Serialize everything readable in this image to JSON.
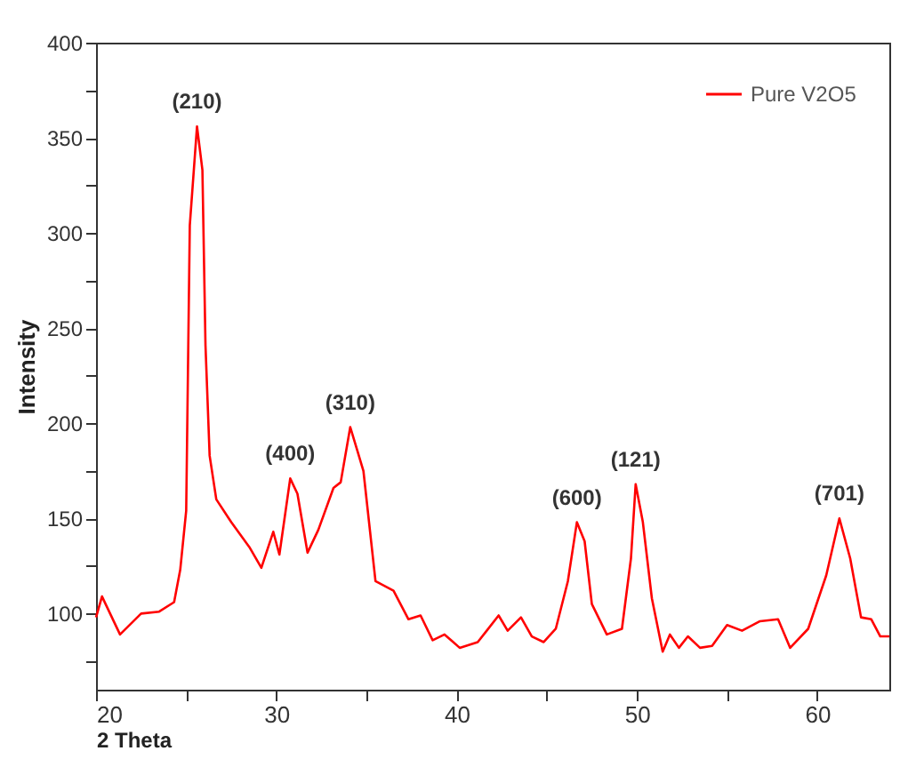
{
  "chart_data": {
    "type": "line",
    "xlabel": "2 Theta",
    "ylabel": "Intensity",
    "xlim": [
      20,
      64
    ],
    "ylim": [
      60,
      400
    ],
    "xticks": [
      20,
      {
        "value": 25,
        "label": null
      },
      30,
      {
        "value": 35,
        "label": null
      },
      40,
      {
        "value": 45,
        "label": null
      },
      50,
      {
        "value": 55,
        "label": null
      },
      60
    ],
    "yticks": [
      {
        "value": 75,
        "label": null
      },
      100,
      {
        "value": 125,
        "label": null
      },
      150,
      {
        "value": 175,
        "label": null
      },
      200,
      {
        "value": 225,
        "label": null
      },
      250,
      {
        "value": 275,
        "label": null
      },
      300,
      {
        "value": 325,
        "label": null
      },
      350,
      {
        "value": 375,
        "label": null
      },
      400
    ],
    "grid": false,
    "legend": "top right",
    "marker": "none",
    "line_style": "solid",
    "series": [
      {
        "name": "Pure V2O5",
        "color": "#ff0000",
        "x": [
          20.0,
          20.33,
          21.33,
          22.5,
          23.5,
          24.33,
          24.67,
          25.0,
          25.2,
          25.6,
          25.9,
          26.07,
          26.3,
          26.67,
          27.5,
          28.5,
          29.17,
          29.83,
          30.17,
          30.77,
          31.17,
          31.73,
          32.33,
          33.17,
          33.57,
          34.1,
          34.83,
          35.5,
          36.5,
          37.33,
          38.0,
          38.67,
          39.33,
          40.17,
          41.17,
          41.67,
          42.33,
          42.83,
          43.57,
          44.17,
          44.83,
          45.5,
          46.17,
          46.67,
          47.1,
          47.5,
          48.33,
          49.17,
          49.67,
          49.93,
          50.33,
          50.83,
          51.43,
          51.83,
          52.33,
          52.83,
          53.5,
          54.17,
          55.0,
          55.83,
          56.83,
          57.83,
          58.5,
          59.5,
          60.5,
          61.23,
          61.83,
          62.43,
          63.0,
          63.5,
          64.0
        ],
        "values": [
          98,
          109,
          89,
          100,
          101,
          106,
          123,
          154,
          304,
          356,
          333,
          241,
          183,
          160,
          148,
          135,
          124,
          143,
          131,
          171,
          163,
          132,
          144,
          166,
          169,
          198,
          175,
          117,
          112,
          97,
          99,
          86,
          89,
          82,
          85,
          91,
          99,
          91,
          98,
          88,
          85,
          92,
          117,
          148,
          138,
          105,
          89,
          92,
          129,
          168,
          148,
          108,
          80,
          89,
          82,
          88,
          82,
          83,
          94,
          91,
          96,
          97,
          82,
          92,
          120,
          150,
          129,
          98,
          97,
          88,
          88
        ]
      }
    ],
    "annotations": [
      {
        "text": "(210)",
        "x": 25.6,
        "y": 356
      },
      {
        "text": "(400)",
        "x": 30.77,
        "y": 171
      },
      {
        "text": "(310)",
        "x": 34.1,
        "y": 198
      },
      {
        "text": "(600)",
        "x": 46.67,
        "y": 148
      },
      {
        "text": "(121)",
        "x": 49.93,
        "y": 168
      },
      {
        "text": "(701)",
        "x": 61.23,
        "y": 150
      }
    ]
  }
}
